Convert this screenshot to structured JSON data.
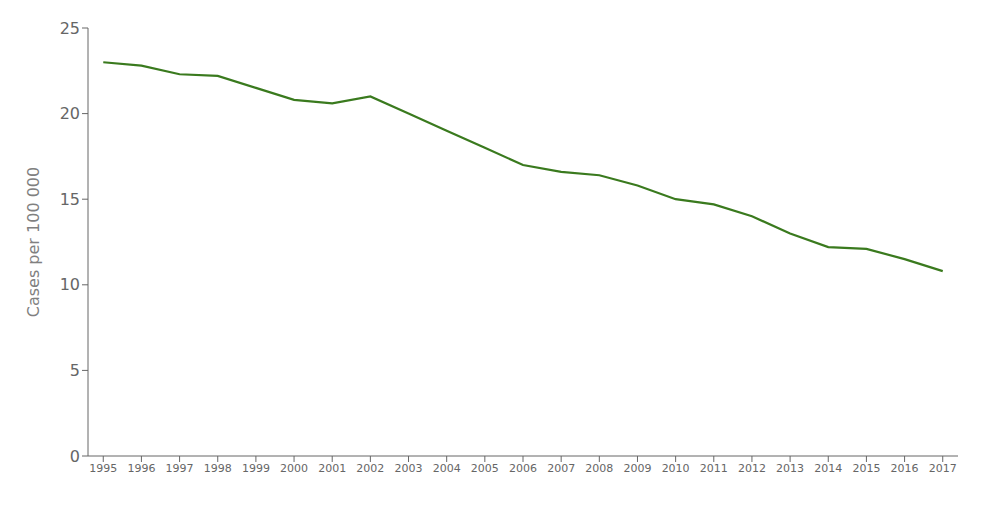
{
  "chart_data": {
    "type": "line",
    "x": [
      1995,
      1996,
      1997,
      1998,
      1999,
      2000,
      2001,
      2002,
      2003,
      2004,
      2005,
      2006,
      2007,
      2008,
      2009,
      2010,
      2011,
      2012,
      2013,
      2014,
      2015,
      2016,
      2017
    ],
    "values": [
      23.0,
      22.8,
      22.3,
      22.2,
      21.5,
      20.8,
      20.6,
      21.0,
      20.0,
      19.0,
      18.0,
      17.0,
      16.6,
      16.4,
      15.8,
      15.0,
      14.7,
      14.0,
      13.0,
      12.2,
      12.1,
      11.5,
      10.8
    ],
    "color": "#3a7a1e",
    "ylabel": "Cases per 100 000",
    "xlim": [
      1994.6,
      2017.4
    ],
    "xticks": [
      1995,
      1996,
      1997,
      1998,
      1999,
      2000,
      2001,
      2002,
      2003,
      2004,
      2005,
      2006,
      2007,
      2008,
      2009,
      2010,
      2011,
      2012,
      2013,
      2014,
      2015,
      2016,
      2017
    ],
    "ylim": [
      0,
      25
    ],
    "yticks": [
      0,
      5,
      10,
      15,
      20,
      25
    ],
    "grid": false
  }
}
